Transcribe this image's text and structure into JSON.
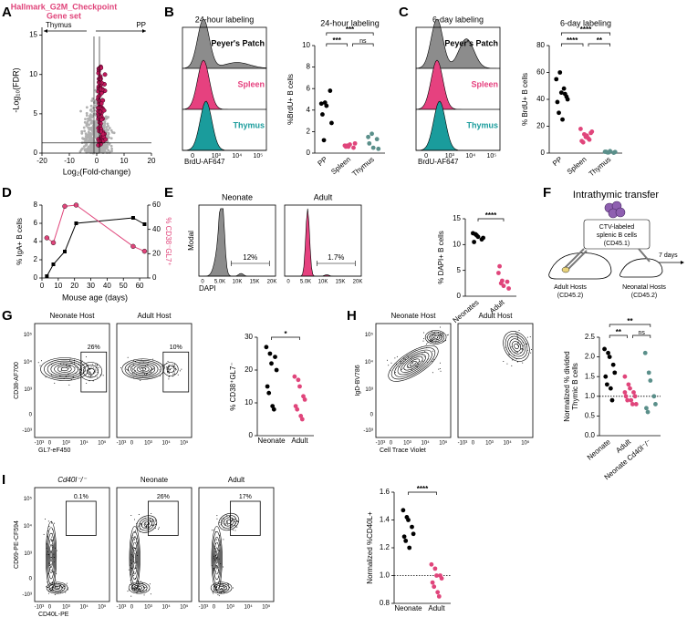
{
  "panel_labels": [
    "A",
    "B",
    "C",
    "D",
    "E",
    "F",
    "G",
    "H",
    "I"
  ],
  "flow_ticks": {
    "log": [
      "0",
      "10³",
      "10⁴",
      "10⁵"
    ],
    "log_neg": [
      "-10³",
      "0",
      "10³",
      "10⁴",
      "10⁵"
    ],
    "linear": [
      "0",
      "5.0K",
      "10K",
      "15K",
      "20K"
    ]
  },
  "A": {
    "title": [
      "Hallmark_G2M_Checkpoint",
      "Gene set"
    ],
    "left_label": "Thymus",
    "right_label": "PP",
    "xlabel": "Log₂(Fold-change)",
    "ylabel": "-Log₁₀(FDR)",
    "xlim": [
      -20,
      20
    ],
    "ylim": [
      0,
      16
    ],
    "xticks": [
      -20,
      -10,
      0,
      10,
      20
    ],
    "yticks": [
      0,
      5,
      10,
      15
    ]
  },
  "B": {
    "histogram": {
      "title": "24-hour labeling",
      "tracks": [
        "Peyer's Patch",
        "Spleen",
        "Thymus"
      ],
      "xlabel": "BrdU-AF647"
    },
    "dotplot": {
      "title": "24-hour labeling",
      "ylabel": [
        "%BrdU+ B cells"
      ],
      "categories": [
        "PP",
        "Spleen",
        "Thymus"
      ],
      "colors": [
        "#000000",
        "#e0457b",
        "#5a8f8a"
      ],
      "ylim": [
        0,
        10
      ],
      "yticks": [
        0,
        2,
        4,
        6,
        8,
        10
      ],
      "values": [
        [
          4.6,
          4.7,
          4.4,
          5.8,
          2.8,
          3.6,
          1.2
        ],
        [
          0.7,
          0.6,
          0.8,
          0.5,
          0.9,
          0.6,
          0.7
        ],
        [
          1.5,
          1.8,
          0.5,
          1.3,
          0.4,
          0.9
        ]
      ],
      "significance": [
        "***",
        "***",
        "ns"
      ]
    }
  },
  "C": {
    "histogram": {
      "title": "6-day labeling",
      "tracks": [
        "Peyer's Patch",
        "Spleen",
        "Thymus"
      ],
      "xlabel": "BrdU-AF647"
    },
    "dotplot": {
      "title": "6-day labeling",
      "ylabel": [
        "% BrdU+ B cells"
      ],
      "categories": [
        "PP",
        "Spleen",
        "Thymus"
      ],
      "colors": [
        "#000000",
        "#e0457b",
        "#5a8f8a"
      ],
      "ylim": [
        0,
        80
      ],
      "yticks": [
        0,
        20,
        40,
        60,
        80
      ],
      "values": [
        [
          55,
          60,
          45,
          44,
          42,
          38,
          30,
          25,
          48,
          40
        ],
        [
          18,
          14,
          12,
          10,
          15,
          9,
          8,
          13,
          11,
          16
        ],
        [
          1,
          0.5,
          1.5,
          0.3,
          0.8,
          1,
          0.5
        ]
      ],
      "significance": [
        "****",
        "****",
        "**"
      ]
    }
  },
  "D": {
    "type": "line",
    "xlabel": "Mouse age (days)",
    "ylabel": "% IgA+ B cells",
    "y2label": "% CD38⁻GL7⁺",
    "x": [
      3,
      7,
      14,
      21,
      56,
      63
    ],
    "xlim": [
      0,
      65
    ],
    "xticks": [
      0,
      10,
      20,
      30,
      40,
      50,
      60
    ],
    "ylim": [
      0,
      8
    ],
    "yticks": [
      0,
      2,
      4,
      6,
      8
    ],
    "y2lim": [
      0,
      60
    ],
    "y2ticks": [
      0,
      20,
      40,
      60
    ],
    "series": [
      {
        "color": "#000000",
        "values": [
          0.2,
          1.5,
          2.9,
          6.0,
          6.6,
          5.9
        ]
      },
      {
        "color": "#e0457b",
        "axis": "y2",
        "values": [
          33,
          29,
          59,
          60,
          26,
          22
        ]
      }
    ]
  },
  "E": {
    "histograms": {
      "panels": [
        "Neonate",
        "Adult"
      ],
      "gates": [
        "12%",
        "1.7%"
      ],
      "ylabel": "Modal",
      "xlabel": "DAPI"
    },
    "dotplot": {
      "ylabel": [
        "% DAPI+ B cells"
      ],
      "categories": [
        "Neonates",
        "Adult"
      ],
      "colors": [
        "#000000",
        "#e0457b"
      ],
      "ylim": [
        0,
        15
      ],
      "yticks": [
        0,
        5,
        10,
        15
      ],
      "values": [
        [
          12.2,
          11.8,
          11.5,
          11,
          11.3,
          10.5,
          12
        ],
        [
          4.5,
          3,
          2,
          2.8,
          1.5,
          5.8,
          2.5
        ]
      ],
      "significance": [
        "****"
      ]
    }
  },
  "F": {
    "title": "Intrathymic transfer",
    "cells": [
      "CTV-labeled",
      "splenic B cells",
      "(CD45.1)"
    ],
    "adult": [
      "Adult Hosts",
      "(CD45.2)"
    ],
    "neonate": [
      "Neonatal Hosts",
      "(CD45.2)"
    ],
    "time": "7 days"
  },
  "G": {
    "flow": {
      "panels": [
        "Neonate Host",
        "Adult Host"
      ],
      "gates": [
        "26%",
        "10%"
      ],
      "ylabel": "CD38-AF700",
      "xlabel": "GL7-eF450"
    },
    "dotplot": {
      "ylabel": [
        "% CD38⁺GL7⁻"
      ],
      "categories": [
        "Neonate",
        "Adult"
      ],
      "colors": [
        "#000000",
        "#e0457b"
      ],
      "ylim": [
        0,
        30
      ],
      "yticks": [
        0,
        10,
        20,
        30
      ],
      "values": [
        [
          27,
          25,
          22,
          24,
          20,
          15,
          13,
          9,
          8
        ],
        [
          18,
          17,
          15,
          12,
          11,
          9,
          8,
          6,
          5
        ]
      ],
      "significance": [
        "*"
      ]
    }
  },
  "H": {
    "flow": {
      "panels": [
        "Neonate Host",
        "Adult Host"
      ],
      "ylabel": "IgD-BV786",
      "xlabel": "Cell Trace Violet"
    },
    "dotplot": {
      "ylabel": [
        "Normalized % divided",
        "Thymic B cells"
      ],
      "categories": [
        "Neonate",
        "Adult",
        "Neonate Cd40l⁻/⁻"
      ],
      "colors": [
        "#000000",
        "#e0457b",
        "#5a8f8a"
      ],
      "ylim": [
        0,
        2.5
      ],
      "yticks": [
        {
          "value": 0,
          "label": "0.0"
        },
        {
          "value": 0.5,
          "label": "0.5"
        },
        {
          "value": 1,
          "label": "1.0"
        },
        {
          "value": 1.5,
          "label": "1.5"
        },
        {
          "value": 2,
          "label": "2.0"
        },
        {
          "value": 2.5,
          "label": "2.5"
        }
      ],
      "reference_line": 1,
      "values": [
        [
          2.2,
          2.1,
          2.0,
          1.8,
          1.6,
          1.5,
          1.3,
          1.2,
          0.9
        ],
        [
          1.5,
          1.3,
          1.2,
          1.1,
          1.0,
          1.0,
          0.9,
          0.9,
          0.8,
          0.8,
          1.1
        ],
        [
          2.1,
          1.6,
          1.4,
          1.0,
          0.8,
          0.7,
          0.6
        ]
      ],
      "significance": [
        "**",
        "**",
        "ns"
      ]
    }
  },
  "I": {
    "flow": {
      "panels": [
        "Cd40l⁻/⁻",
        "Neonate",
        "Adult"
      ],
      "gates": [
        "0.1%",
        "26%",
        "17%"
      ],
      "ylabel": "CD69-PE-CF594",
      "xlabel": "CD40L-PE"
    },
    "dotplot": {
      "ylabel": [
        "Normalized %CD40L+"
      ],
      "categories": [
        "Neonate",
        "Adult"
      ],
      "colors": [
        "#000000",
        "#e0457b"
      ],
      "ylim": [
        0.8,
        1.6
      ],
      "yticks": [
        {
          "value": 0.8,
          "label": "0.8"
        },
        {
          "value": 1,
          "label": "1.0"
        },
        {
          "value": 1.2,
          "label": "1.2"
        },
        {
          "value": 1.4,
          "label": "1.4"
        },
        {
          "value": 1.6,
          "label": "1.6"
        }
      ],
      "reference_line": 1,
      "values": [
        [
          1.47,
          1.42,
          1.4,
          1.35,
          1.3,
          1.28,
          1.25,
          1.2
        ],
        [
          1.08,
          1.05,
          1.0,
          1.0,
          0.98,
          0.95,
          0.92,
          0.88,
          0.85
        ]
      ],
      "significance": [
        "****"
      ]
    }
  }
}
